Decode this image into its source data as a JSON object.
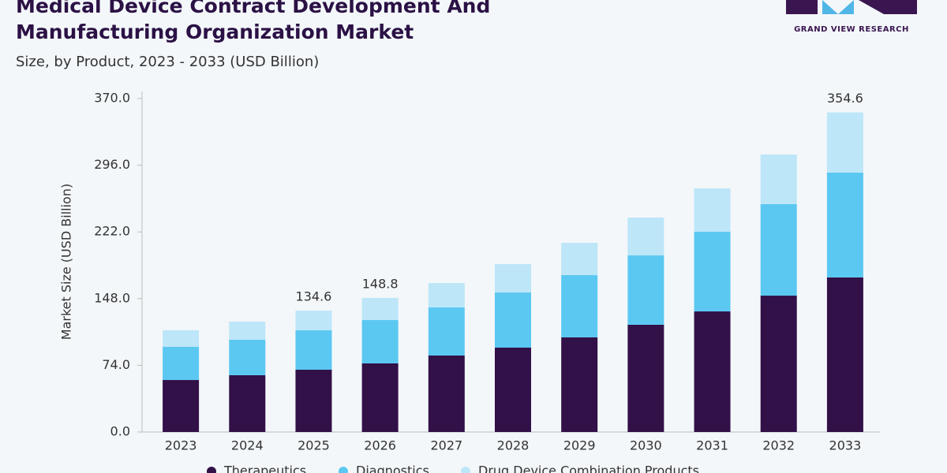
{
  "chart_data": {
    "type": "stacked-bar",
    "title": "Medical Device Contract Development And Manufacturing Organization Market",
    "subtitle": "Size, by Product, 2023 - 2033 (USD Billion)",
    "brand": "GRAND VIEW RESEARCH",
    "ylabel": "Market Size (USD Billion)",
    "categories": [
      "2023",
      "2024",
      "2025",
      "2026",
      "2027",
      "2028",
      "2029",
      "2030",
      "2031",
      "2032",
      "2033"
    ],
    "series": [
      {
        "name": "Therapeutics",
        "color": "#321048",
        "values": [
          57.7,
          63.0,
          69.1,
          76.1,
          84.9,
          93.6,
          105.0,
          119.0,
          133.8,
          151.3,
          171.5
        ]
      },
      {
        "name": "Diagnostics",
        "color": "#5bc8f2",
        "values": [
          36.8,
          39.4,
          43.8,
          48.1,
          53.3,
          61.2,
          69.1,
          77.0,
          88.4,
          101.5,
          116.3
        ]
      },
      {
        "name": "Drug Device Combination Products",
        "color": "#bde6f8",
        "values": [
          18.4,
          20.1,
          21.7,
          24.6,
          27.1,
          31.5,
          35.8,
          41.9,
          48.1,
          55.1,
          66.8
        ]
      }
    ],
    "totals": [
      null,
      null,
      134.6,
      148.8,
      null,
      null,
      null,
      null,
      null,
      null,
      354.6
    ],
    "ylim": [
      0,
      370
    ],
    "yticks": [
      {
        "value": 0,
        "label": "0.0"
      },
      {
        "value": 74,
        "label": "74.0"
      },
      {
        "value": 148,
        "label": "148.0"
      },
      {
        "value": 222,
        "label": "222.0"
      },
      {
        "value": 296,
        "label": "296.0"
      },
      {
        "value": 370,
        "label": "370.0"
      }
    ],
    "grid": false
  }
}
